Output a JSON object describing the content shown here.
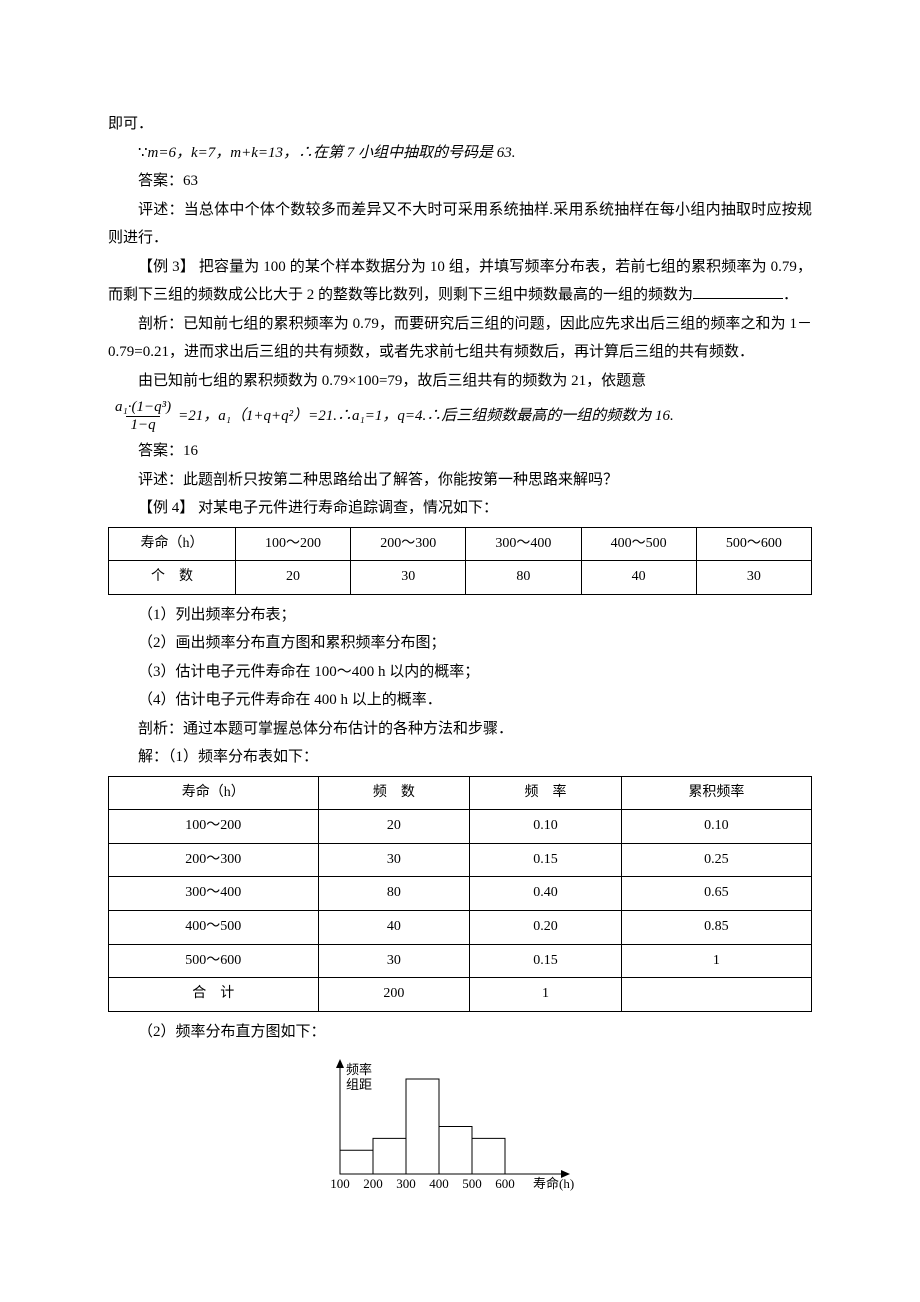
{
  "paragraphs": {
    "p1": "即可．",
    "p2_prefix": "∵",
    "p2_body": "m=6，k=7，m+k=13，∴在第 7 小组中抽取的号码是 63.",
    "p3": "答案：63",
    "p4": "评述：当总体中个体个数较多而差异又不大时可采用系统抽样.采用系统抽样在每小组内抽取时应按规则进行．",
    "p5": "【例 3】 把容量为 100 的某个样本数据分为 10 组，并填写频率分布表，若前七组的累积频率为 0.79，而剩下三组的频数成公比大于 2 的整数等比数列，则剩下三组中频数最高的一组的频数为",
    "p5_end": "．",
    "p6": "剖析：已知前七组的累积频率为 0.79，而要研究后三组的问题，因此应先求出后三组的频率之和为 1－0.79=0.21，进而求出后三组的共有频数，或者先求前七组共有频数后，再计算后三组的共有频数．",
    "p7": "由已知前七组的累积频数为 0.79×100=79，故后三组共有的频数为 21，依题意",
    "p8_after": "=21，a₁（1+q+q²）=21.∴a₁=1，q=4.∴后三组频数最高的一组的频数为 16.",
    "p9": "答案：16",
    "p10": "评述：此题剖析只按第二种思路给出了解答，你能按第一种思路来解吗？",
    "p11": "【例 4】 对某电子元件进行寿命追踪调查，情况如下：",
    "q1": "（1）列出频率分布表；",
    "q2": "（2）画出频率分布直方图和累积频率分布图；",
    "q3": "（3）估计电子元件寿命在 100～400 h 以内的概率；",
    "q4": "（4）估计电子元件寿命在 400 h 以上的概率．",
    "q5": "剖析：通过本题可掌握总体分布估计的各种方法和步骤．",
    "q6": "解：（1）频率分布表如下：",
    "q7": "（2）频率分布直方图如下："
  },
  "frac": {
    "num": "a₁·(1−q³)",
    "den": "1−q"
  },
  "table1": {
    "headers": [
      "寿命（h）",
      "100～200",
      "200～300",
      "300～400",
      "400～500",
      "500～600"
    ],
    "row_label": "个　数",
    "values": [
      "20",
      "30",
      "80",
      "40",
      "30"
    ]
  },
  "table2": {
    "headers": [
      "寿命（h）",
      "频　数",
      "频　率",
      "累积频率"
    ],
    "rows": [
      [
        "100～200",
        "20",
        "0.10",
        "0.10"
      ],
      [
        "200～300",
        "30",
        "0.15",
        "0.25"
      ],
      [
        "300～400",
        "80",
        "0.40",
        "0.65"
      ],
      [
        "400～500",
        "40",
        "0.20",
        "0.85"
      ],
      [
        "500～600",
        "30",
        "0.15",
        "1"
      ],
      [
        "合　计",
        "200",
        "1",
        ""
      ]
    ]
  },
  "histogram": {
    "ylabel_top": "频率",
    "ylabel_bot": "组距",
    "xlabel": "寿命(h)",
    "xticks": [
      "100",
      "200",
      "300",
      "400",
      "500",
      "600"
    ],
    "bar_heights_relative": [
      0.1,
      0.15,
      0.4,
      0.2,
      0.15
    ],
    "bar_color": "#ffffff",
    "stroke_color": "#000000",
    "axis_color": "#000000",
    "font_size": 13
  }
}
